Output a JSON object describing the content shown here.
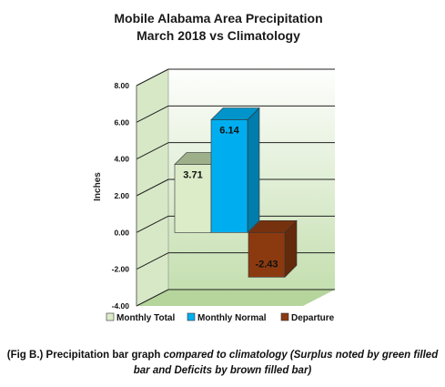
{
  "chart_data": {
    "type": "bar",
    "title": "Mobile Alabama Area Precipitation",
    "subtitle": "March 2018 vs Climatology",
    "ylabel": "Inches",
    "ylim": [
      -4,
      8
    ],
    "yticks": [
      "8.00",
      "6.00",
      "4.00",
      "2.00",
      "0.00",
      "-2.00",
      "-4.00"
    ],
    "grid": true,
    "legend_position": "bottom",
    "series": [
      {
        "name": "Monthly Total",
        "value": 3.71,
        "label": "3.71",
        "color": "#dcebc8"
      },
      {
        "name": "Monthly Normal",
        "value": 6.14,
        "label": "6.14",
        "color": "#00aeef"
      },
      {
        "name": "Departure",
        "value": -2.43,
        "label": "-2.43",
        "color": "#8b3a10"
      }
    ]
  },
  "caption": {
    "part1": "(Fig B.) Precipitation bar graph ",
    "part2": "compared to climatology (Surplus noted by green filled bar and Deficits by brown filled bar)"
  }
}
